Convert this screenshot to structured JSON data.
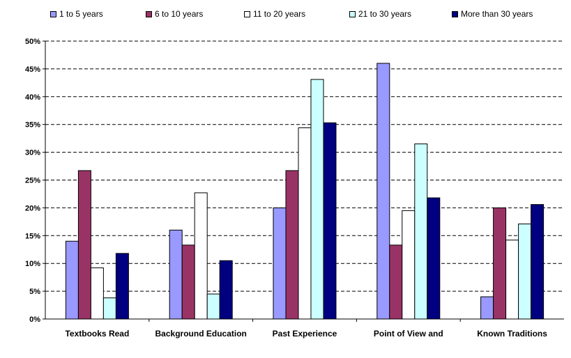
{
  "chart_data": {
    "type": "bar",
    "title": "",
    "xlabel": "",
    "ylabel": "",
    "categories": [
      "Textbooks Read",
      "Background Education",
      "Past Experience",
      "Point of View and",
      "Known Traditions"
    ],
    "series": [
      {
        "name": "1 to 5 years",
        "color": "#9999FF",
        "values": [
          14,
          16,
          20,
          46,
          4
        ]
      },
      {
        "name": "6 to 10 years",
        "color": "#993366",
        "values": [
          26.7,
          13.3,
          26.7,
          13.3,
          20
        ]
      },
      {
        "name": "11 to 20 years",
        "color": "#FFFFFF",
        "values": [
          9.2,
          22.7,
          34.4,
          19.5,
          14.2
        ]
      },
      {
        "name": "21 to 30 years",
        "color": "#CCFFFF",
        "values": [
          3.8,
          4.5,
          43.1,
          31.5,
          17.1
        ]
      },
      {
        "name": "More than 30 years",
        "color": "#000080",
        "values": [
          11.8,
          10.5,
          35.3,
          21.8,
          20.6
        ]
      }
    ],
    "ylim": [
      0,
      50
    ],
    "yticks": [
      "0%",
      "5%",
      "10%",
      "15%",
      "20%",
      "25%",
      "30%",
      "35%",
      "40%",
      "45%",
      "50%"
    ],
    "grid": true,
    "legend_position": "top"
  }
}
